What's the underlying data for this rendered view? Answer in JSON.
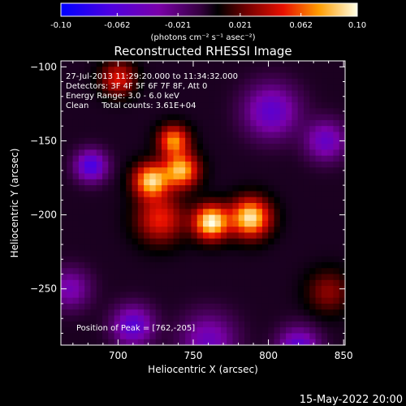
{
  "chart_data": {
    "type": "heatmap",
    "title": "Reconstructed RHESSI Image",
    "xlabel": "Heliocentric X (arcsec)",
    "ylabel": "Heliocentric Y (arcsec)",
    "xlim": [
      662,
      851
    ],
    "ylim": [
      -288,
      -96
    ],
    "xticks": [
      700,
      750,
      800,
      850
    ],
    "yticks": [
      -100,
      -150,
      -200,
      -250
    ],
    "colorbar": {
      "min": -0.1,
      "max": 0.1,
      "ticks": [
        "-0.10",
        "-0.062",
        "-0.021",
        "0.021",
        "0.062",
        "0.10"
      ],
      "tick_values": [
        -0.1,
        -0.062,
        -0.021,
        0.021,
        0.062,
        0.1
      ],
      "unit_label": "(photons cm⁻² s⁻¹ asec⁻²)"
    },
    "info_lines": [
      "27-Jul-2013 11:29:20.000 to 11:34:32.000",
      "Detectors: 3F 4F 5F 6F 7F 8F, Att 0",
      "Energy Range: 3.0 - 6.0 keV",
      "Clean     Total counts: 3.61E+04"
    ],
    "peak_label": "Position of Peak = [762,-205]",
    "peak": [
      762,
      -205
    ],
    "sources": [
      {
        "x": 762,
        "y": -205,
        "peak": 0.1,
        "sigma": 8
      },
      {
        "x": 788,
        "y": -202,
        "peak": 0.095,
        "sigma": 9
      },
      {
        "x": 722,
        "y": -177,
        "peak": 0.088,
        "sigma": 8
      },
      {
        "x": 742,
        "y": -170,
        "peak": 0.083,
        "sigma": 8
      },
      {
        "x": 737,
        "y": -150,
        "peak": 0.072,
        "sigma": 7
      },
      {
        "x": 728,
        "y": -203,
        "peak": 0.052,
        "sigma": 11
      },
      {
        "x": 700,
        "y": -108,
        "peak": 0.048,
        "sigma": 8
      },
      {
        "x": 840,
        "y": -252,
        "peak": 0.03,
        "sigma": 10
      },
      {
        "x": 682,
        "y": -167,
        "peak": -0.07,
        "sigma": 7
      },
      {
        "x": 710,
        "y": -275,
        "peak": -0.06,
        "sigma": 9
      },
      {
        "x": 802,
        "y": -130,
        "peak": -0.055,
        "sigma": 12
      },
      {
        "x": 820,
        "y": -290,
        "peak": -0.06,
        "sigma": 9
      },
      {
        "x": 838,
        "y": -150,
        "peak": -0.05,
        "sigma": 9
      },
      {
        "x": 760,
        "y": -285,
        "peak": -0.045,
        "sigma": 12
      },
      {
        "x": 668,
        "y": -250,
        "peak": -0.04,
        "sigma": 9
      }
    ],
    "colormap_stops": [
      {
        "v": 0.0,
        "c": "#0000ff"
      },
      {
        "v": 0.17,
        "c": "#4f00e0"
      },
      {
        "v": 0.33,
        "c": "#7a00a8"
      },
      {
        "v": 0.47,
        "c": "#350040"
      },
      {
        "v": 0.53,
        "c": "#000000"
      },
      {
        "v": 0.63,
        "c": "#760000"
      },
      {
        "v": 0.75,
        "c": "#e81000"
      },
      {
        "v": 0.87,
        "c": "#ff9c00"
      },
      {
        "v": 1.0,
        "c": "#ffffe6"
      }
    ]
  },
  "footer": {
    "timestamp": "15-May-2022 20:00"
  }
}
